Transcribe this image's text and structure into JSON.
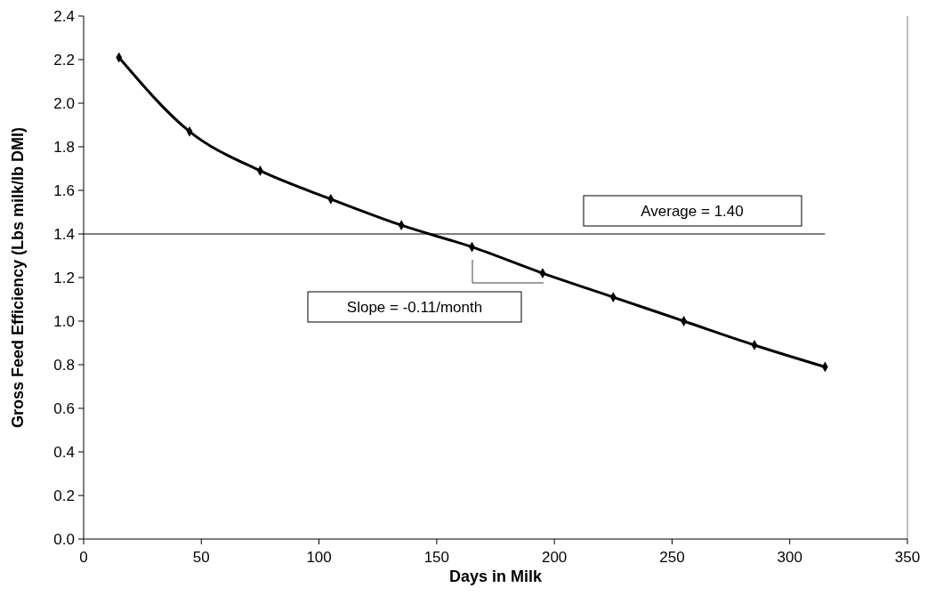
{
  "chart_data": {
    "type": "line",
    "xlabel": "Days in Milk",
    "ylabel": "Gross Feed Efficiency (Lbs milk/lb DMI)",
    "x": [
      15,
      45,
      75,
      105,
      135,
      165,
      195,
      225,
      255,
      285,
      315
    ],
    "series": [
      {
        "color": "#000000",
        "values": [
          2.21,
          1.87,
          1.69,
          1.56,
          1.44,
          1.34,
          1.22,
          1.11,
          1.0,
          0.89,
          0.79
        ]
      }
    ],
    "xlim": [
      0,
      350
    ],
    "xticks": [
      0,
      50,
      100,
      150,
      200,
      250,
      300,
      350
    ],
    "ylim": [
      0,
      2.4
    ],
    "yticks": [
      {
        "value": 0,
        "label": "0.0"
      },
      {
        "value": 0.2,
        "label": "0.2"
      },
      {
        "value": 0.4,
        "label": "0.4"
      },
      {
        "value": 0.6,
        "label": "0.6"
      },
      {
        "value": 0.8,
        "label": "0.8"
      },
      {
        "value": 1,
        "label": "1.0"
      },
      {
        "value": 1.2,
        "label": "1.2"
      },
      {
        "value": 1.4,
        "label": "1.4"
      },
      {
        "value": 1.6,
        "label": "1.6"
      },
      {
        "value": 1.8,
        "label": "1.8"
      },
      {
        "value": 2,
        "label": "2.0"
      },
      {
        "value": 2.2,
        "label": "2.2"
      },
      {
        "value": 2.4,
        "label": "2.4"
      }
    ],
    "ref_lines": [
      {
        "axis": "y",
        "value": 1.4,
        "label": "Average = 1.40",
        "color": "#000000"
      }
    ],
    "annotations": [
      "Slope = -0.11/month"
    ],
    "marker": "diamond"
  }
}
